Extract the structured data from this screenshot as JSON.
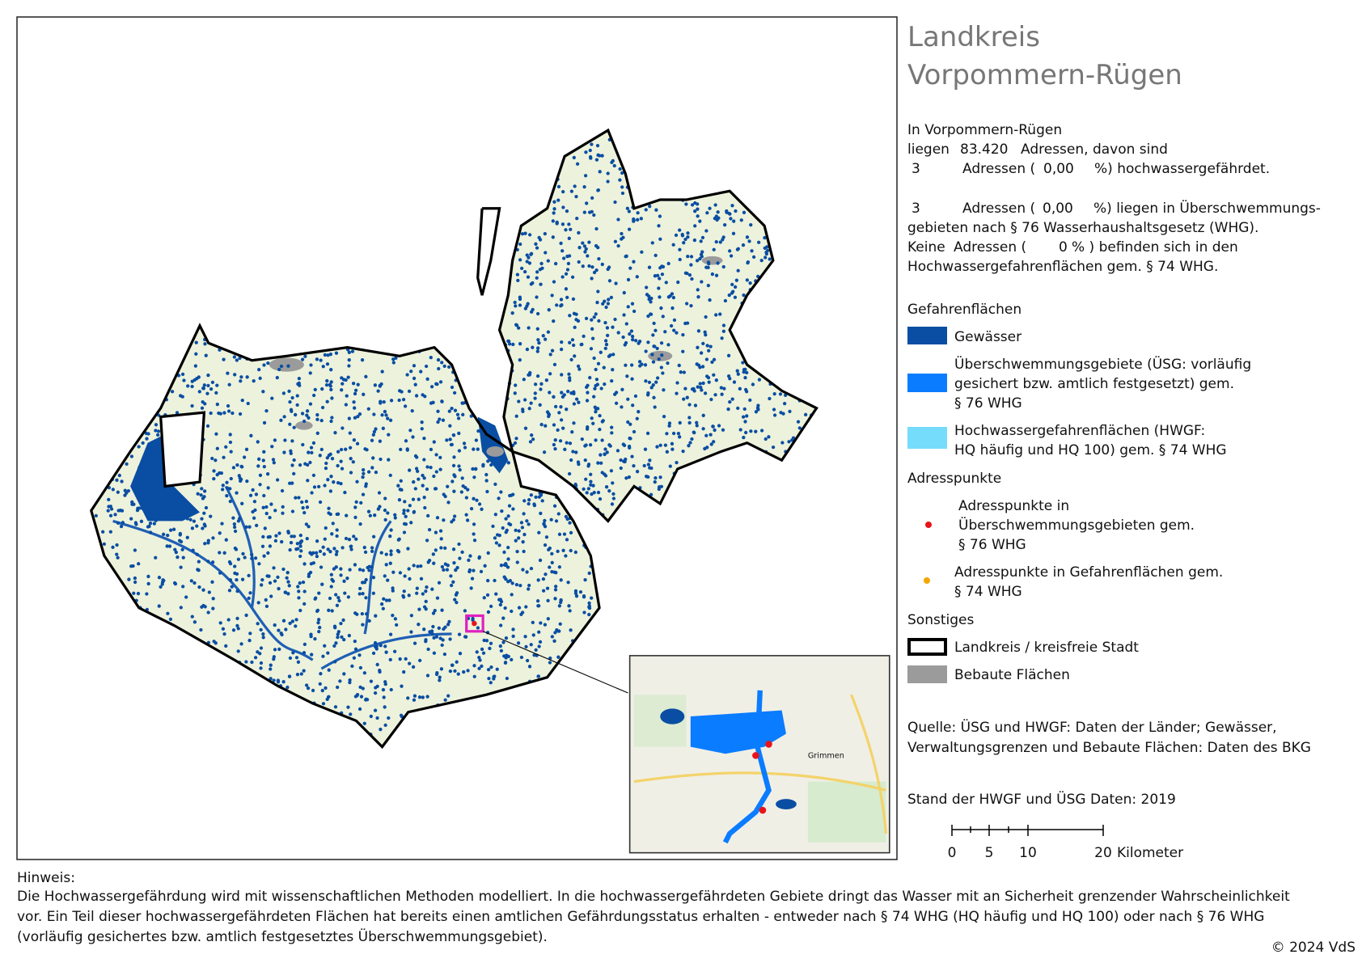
{
  "header": {
    "title_line1": "Landkreis",
    "title_line2": "Vorpommern-Rügen"
  },
  "summary": {
    "l1": "In Vorpommern-Rügen",
    "l2a": "liegen",
    "l2b": "83.420",
    "l2c": "Adressen, davon sind",
    "l3a": "3",
    "l3b": "Adressen (",
    "l3c": "0,00",
    "l3d": "%) hochwassergefährdet.",
    "l4a": "3",
    "l4b": "Adressen (",
    "l4c": "0,00",
    "l4d": "%) liegen in Überschwemmungs-",
    "l5": "gebieten nach § 76 Wasserhaushaltsgesetz (WHG).",
    "l6a": "Keine",
    "l6b": "Adressen (",
    "l6c": "0",
    "l6d": "% ) befinden sich in den",
    "l7": "Hochwassergefahrenflächen gem. § 74 WHG."
  },
  "legend": {
    "hazard_title": "Gefahrenflächen",
    "water": "Gewässer",
    "usg": [
      "Überschwemmungsgebiete (ÜSG: vorläufig",
      "gesichert bzw. amtlich festgesetzt) gem.",
      "§ 76 WHG"
    ],
    "hwgf": [
      "Hochwassergefahrenflächen (HWGF:",
      "HQ häufig und HQ 100) gem. § 74 WHG"
    ],
    "points_title": "Adresspunkte",
    "points_usg": [
      "Adresspunkte in",
      "Überschwemmungsgebieten gem.",
      "§ 76 WHG"
    ],
    "points_hwgf": [
      "Adresspunkte in Gefahrenflächen gem.",
      "§ 74 WHG"
    ],
    "other_title": "Sonstiges",
    "district": "Landkreis / kreisfreie Stadt",
    "built": "Bebaute Flächen"
  },
  "source": [
    "Quelle: ÜSG und HWGF: Daten der Länder; Gewässer,",
    "Verwaltungsgrenzen und Bebaute Flächen: Daten des BKG"
  ],
  "status": "Stand der HWGF und ÜSG Daten:  2019",
  "scalebar": {
    "ticks": [
      "0",
      "5",
      "10",
      "20"
    ],
    "unit": "Kilometer"
  },
  "inset": {
    "town": "Grimmen"
  },
  "note": {
    "title": "Hinweis:",
    "lines": [
      "Die Hochwassergefährdung wird mit wissenschaftlichen Methoden modelliert. In die hochwassergefährdeten Gebiete dringt das Wasser mit an Sicherheit grenzender Wahrscheinlichkeit",
      "vor. Ein Teil dieser hochwassergefährdeten Flächen hat bereits einen amtlichen Gefährdungsstatus erhalten - entweder nach § 74 WHG (HQ häufig und HQ 100) oder nach § 76 WHG",
      "(vorläufig gesichertes bzw. amtlich festgesetztes Überschwemmungsgebiet)."
    ]
  },
  "copyright": "© 2024 VdS"
}
